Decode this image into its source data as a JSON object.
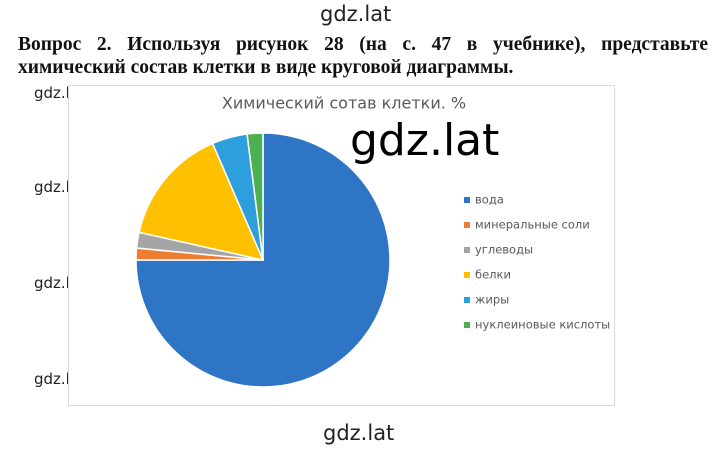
{
  "watermarks": [
    "gdz.lat",
    "gdz.lat",
    "gdz.lat",
    "gdz.lat",
    "gdz.lat",
    "gdz.lat",
    "gdz.lat",
    "gdz.lat"
  ],
  "question": "Вопрос 2. Используя рисунок 28 (на с. 47 в учебнике), представьте химический состав клетки в виде круговой диаграммы.",
  "chart_data": {
    "type": "pie",
    "title": "Химический сотав клетки. %",
    "categories": [
      "вода",
      "минеральные соли",
      "углеводы",
      "белки",
      "жиры",
      "нуклеиновые кислоты"
    ],
    "values": [
      75,
      1.5,
      2,
      15,
      4.5,
      2
    ],
    "colors": [
      "#2f75c6",
      "#ed7d31",
      "#a5a5a5",
      "#ffc000",
      "#2e9fdc",
      "#4caf50"
    ],
    "legend": "right"
  }
}
